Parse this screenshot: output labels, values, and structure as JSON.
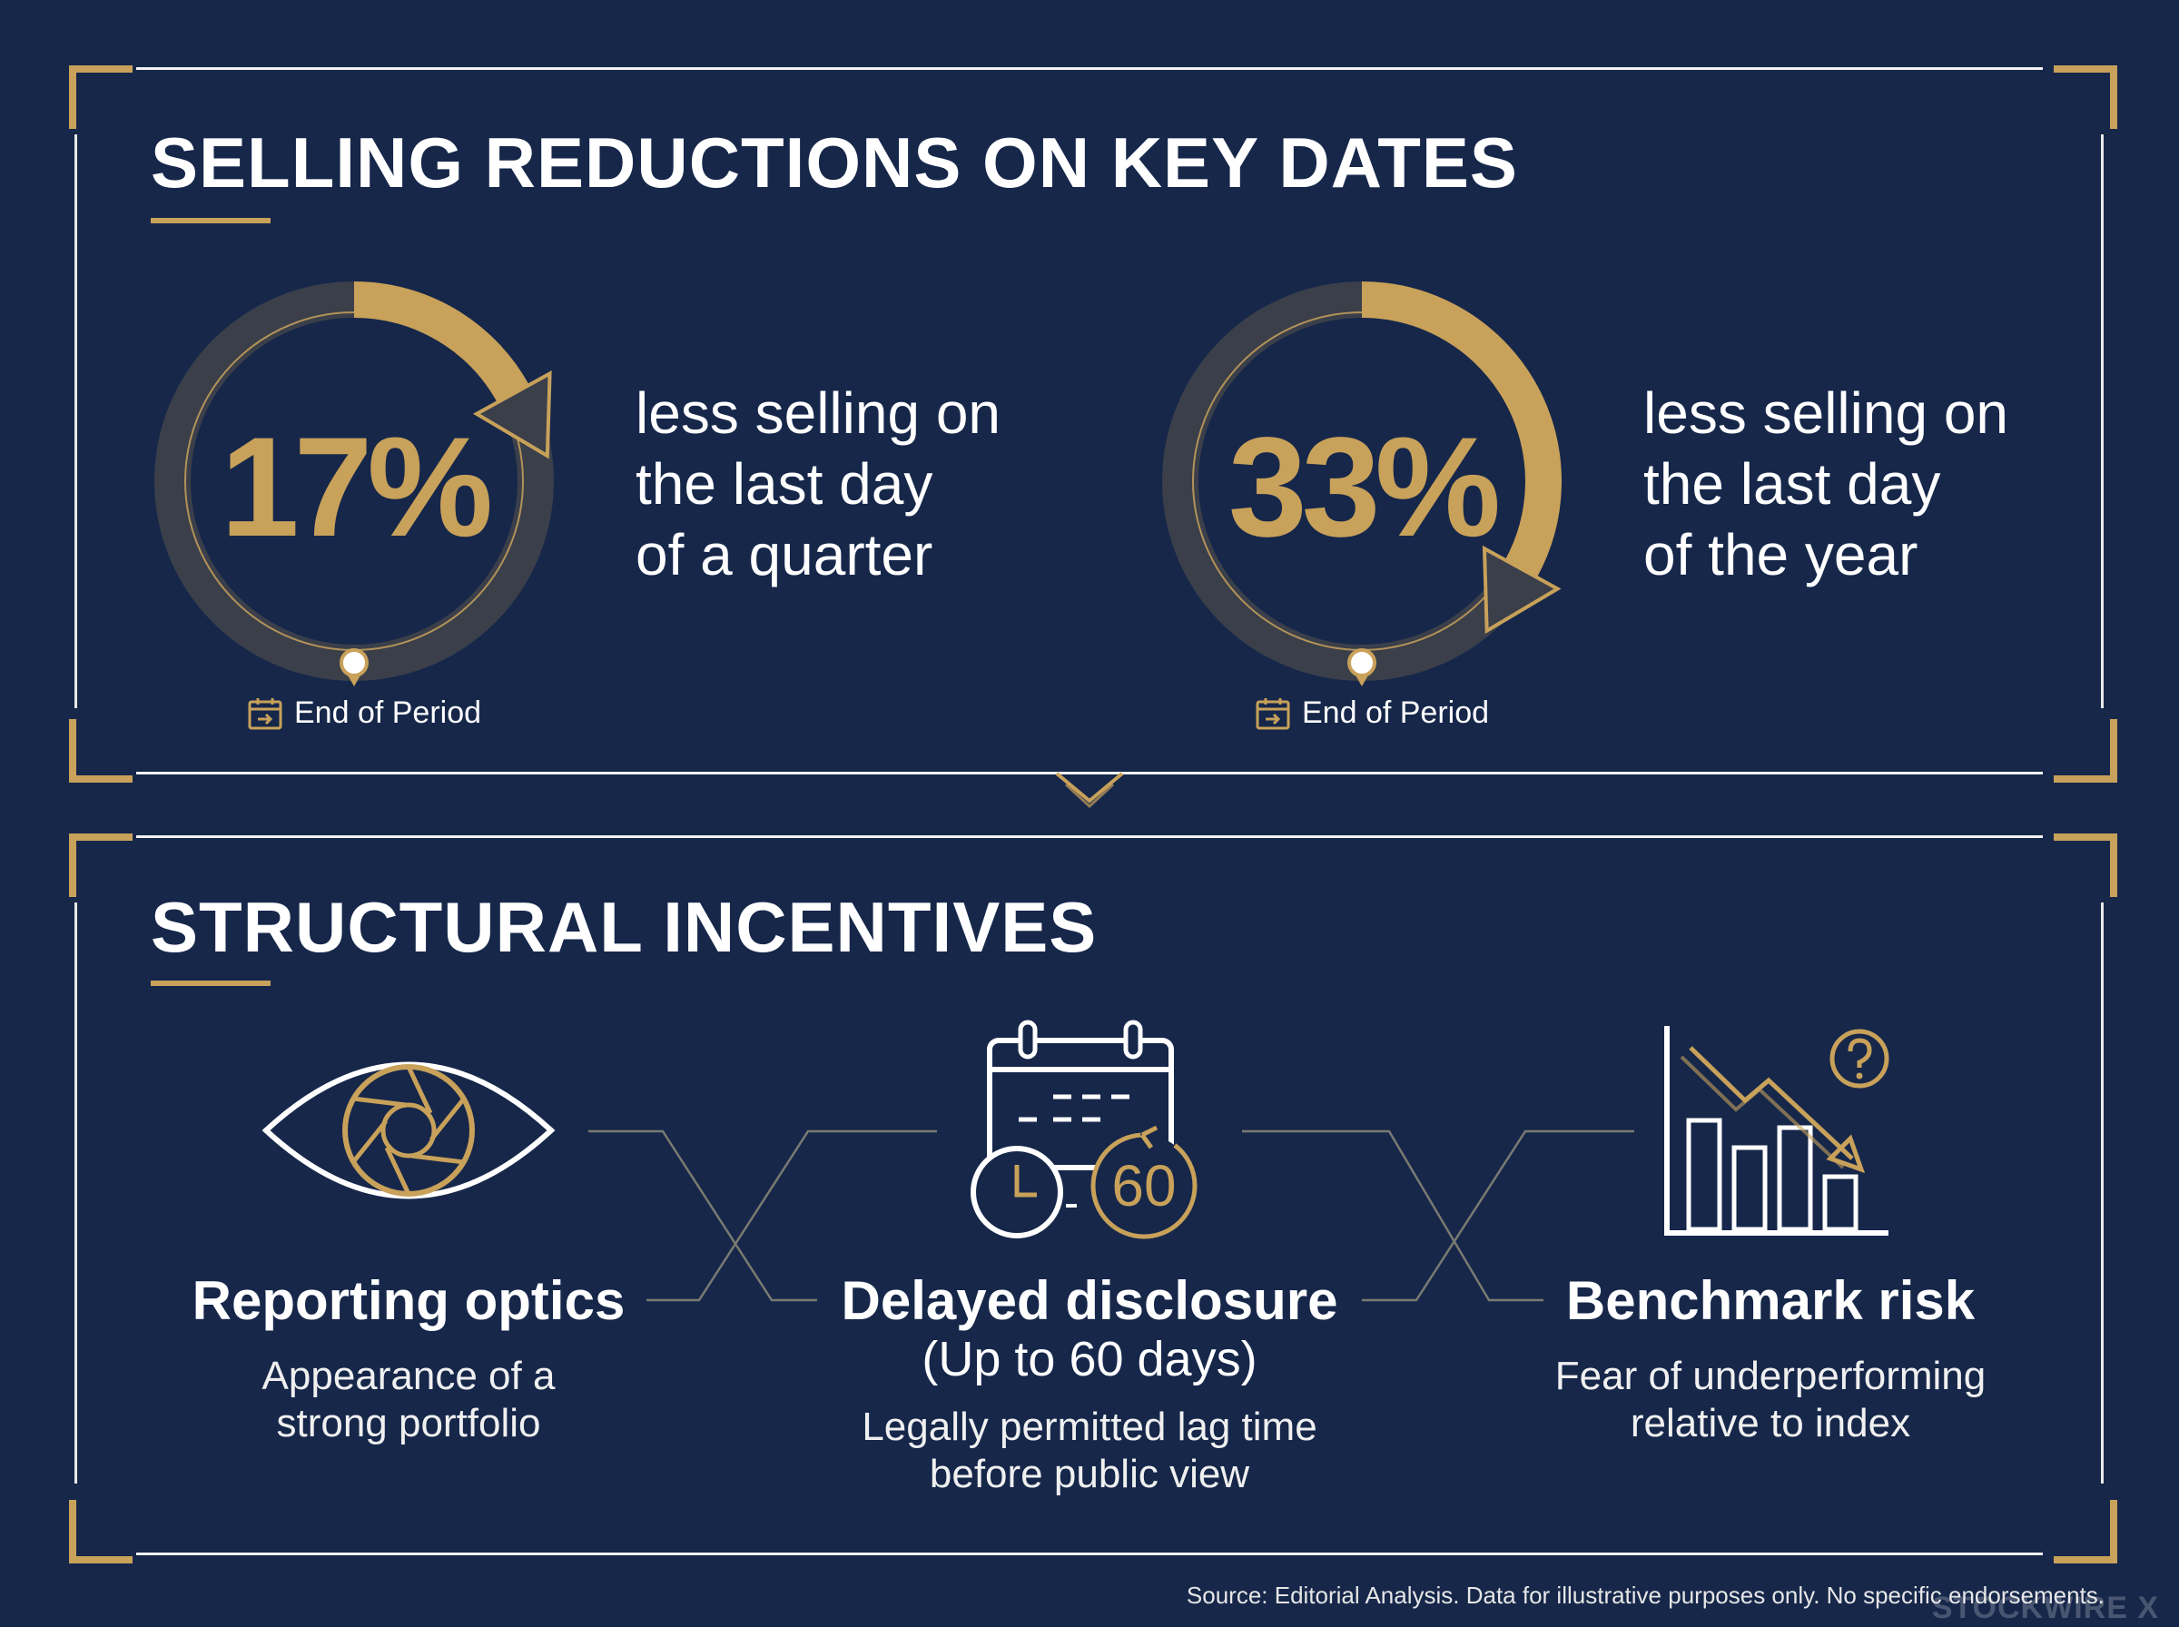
{
  "section1": {
    "title": "SELLING REDUCTIONS ON KEY DATES",
    "stats": [
      {
        "percent": "17%",
        "progress": 0.17,
        "lines": [
          "less selling on",
          "the last day",
          "of a quarter"
        ],
        "period_label": "End of Period"
      },
      {
        "percent": "33%",
        "progress": 0.33,
        "lines": [
          "less selling on",
          "the last day",
          "of the year"
        ],
        "period_label": "End of Period"
      }
    ]
  },
  "section2": {
    "title": "STRUCTURAL INCENTIVES",
    "cards": [
      {
        "title": "Reporting optics",
        "description": [
          "Appearance of a",
          "strong portfolio"
        ],
        "icon": "eye-aperture-icon"
      },
      {
        "title": "Delayed disclosure",
        "subtitle": "(Up to 60 days)",
        "description": [
          "Legally permitted lag time",
          "before public view"
        ],
        "icon": "calendar-clock-icon",
        "icon_text": "60"
      },
      {
        "title": "Benchmark risk",
        "description": [
          "Fear of underperforming",
          "relative to index"
        ],
        "icon": "declining-chart-icon"
      }
    ]
  },
  "footer": {
    "source": "Source: Editorial Analysis. Data for illustrative purposes only. No specific endorsements.",
    "watermark": "STOCKWIRE X"
  },
  "colors": {
    "background": "#16274a",
    "gold": "#c8a15a",
    "ring_track": "#3a3f4a",
    "text": "#ffffff"
  }
}
